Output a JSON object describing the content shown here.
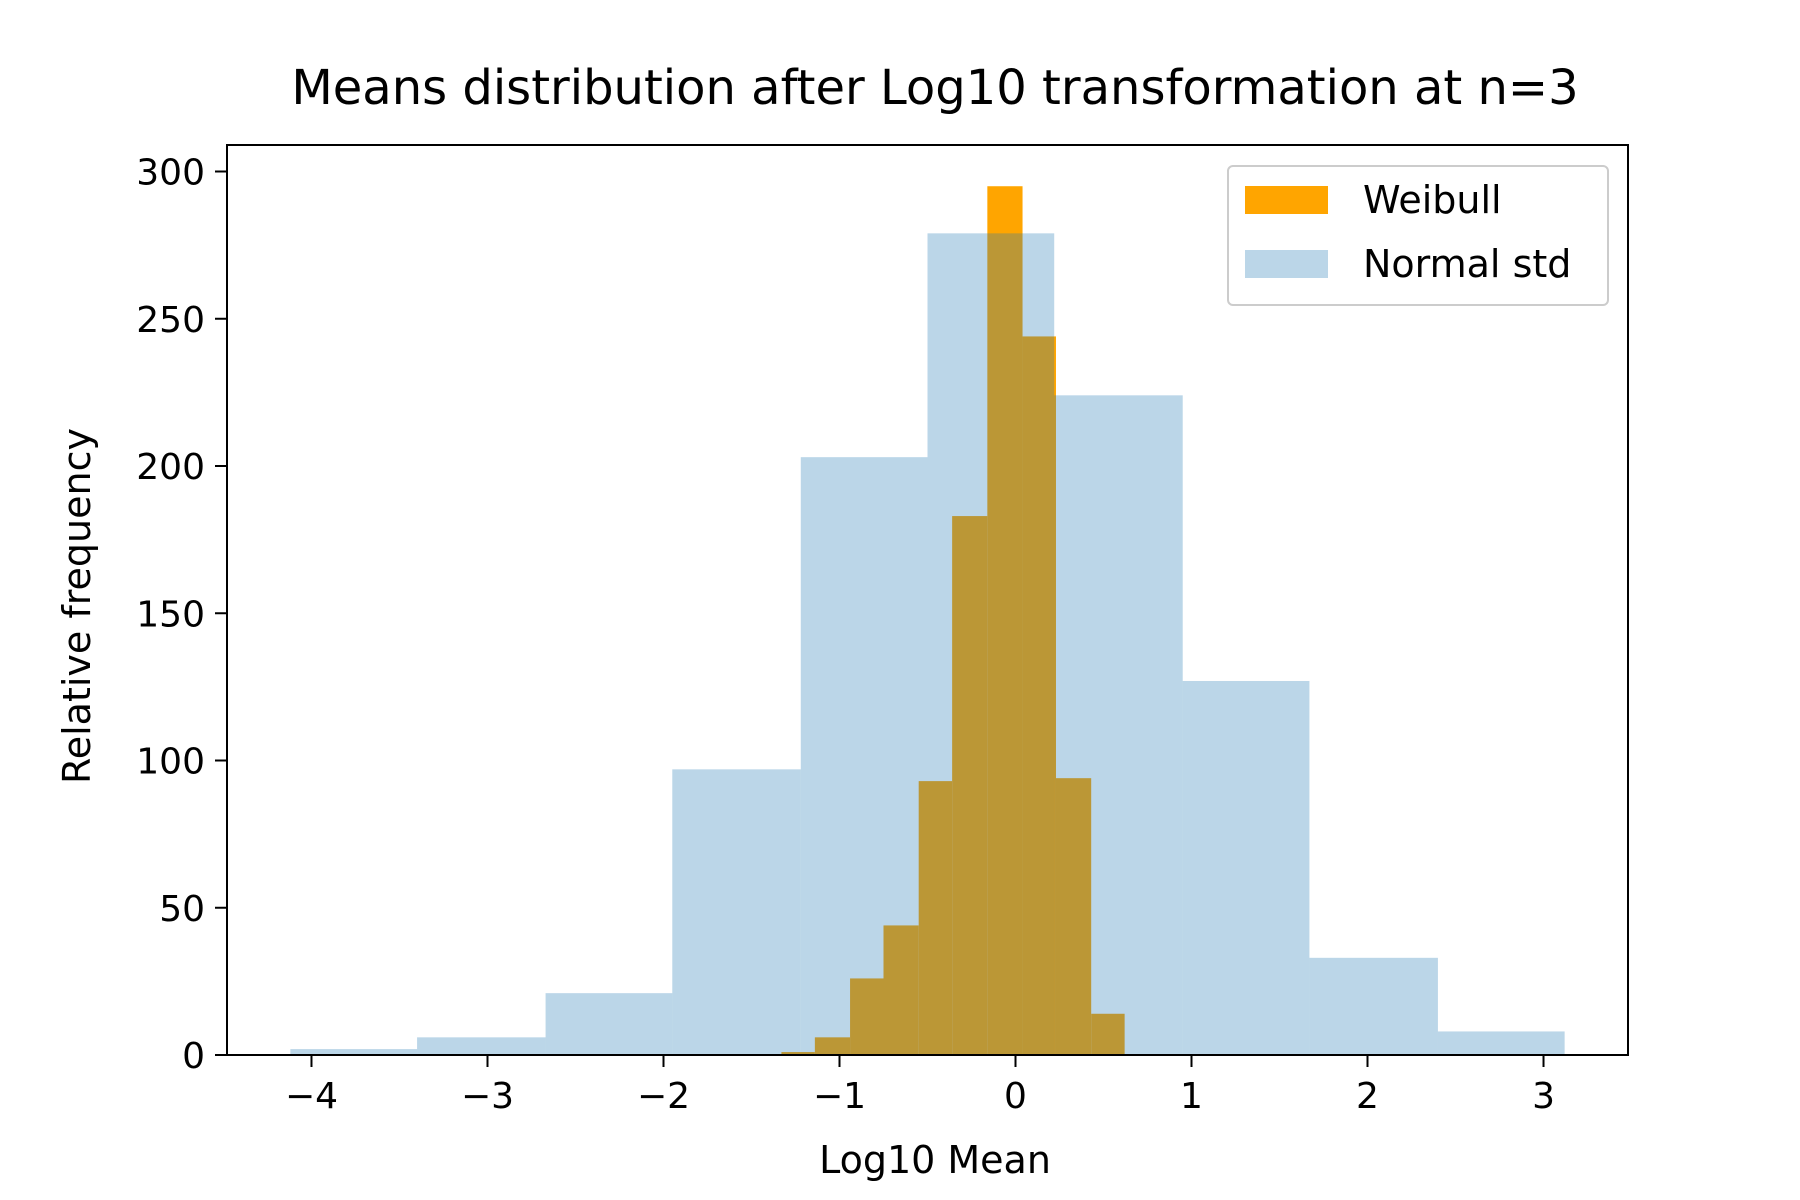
{
  "chart_data": {
    "type": "bar",
    "title": "Means distribution after Log10 transformation at n=3",
    "xlabel": "Log10 Mean",
    "ylabel": "Relative frequency",
    "xlim": [
      -4.48,
      3.48
    ],
    "ylim": [
      0,
      309
    ],
    "x_ticks": [
      -4,
      -3,
      -2,
      -1,
      0,
      1,
      2,
      3
    ],
    "x_tick_labels": [
      "−4",
      "−3",
      "−2",
      "−1",
      "0",
      "1",
      "2",
      "3"
    ],
    "y_ticks": [
      0,
      50,
      100,
      150,
      200,
      250,
      300
    ],
    "y_tick_labels": [
      "0",
      "50",
      "100",
      "150",
      "200",
      "250",
      "300"
    ],
    "grid": false,
    "legend_position": "top-right",
    "series": [
      {
        "name": "Weibull",
        "color": "#ffa500",
        "opacity": 1.0,
        "bin_edges": [
          -1.33,
          -1.14,
          -0.94,
          -0.75,
          -0.55,
          -0.36,
          -0.16,
          0.04,
          0.23,
          0.43,
          0.62
        ],
        "values": [
          1,
          6,
          26,
          44,
          93,
          183,
          295,
          244,
          94,
          14
        ]
      },
      {
        "name": "Normal std",
        "color": "#1f77b4",
        "opacity": 0.3,
        "bin_edges": [
          -4.12,
          -3.4,
          -2.67,
          -1.95,
          -1.22,
          -0.5,
          0.22,
          0.95,
          1.67,
          2.4,
          3.12
        ],
        "values": [
          2,
          6,
          21,
          97,
          203,
          279,
          224,
          127,
          33,
          8
        ]
      }
    ]
  }
}
